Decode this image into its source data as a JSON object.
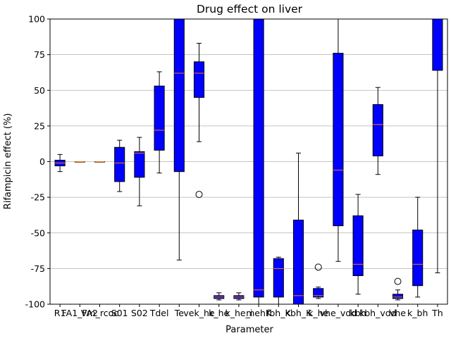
{
  "chart_data": {
    "type": "box",
    "title": "Drug effect on liver",
    "xlabel": "Parameter",
    "ylabel": "Rifampicin effect (%)",
    "ylim": [
      -100,
      100
    ],
    "yticks": [
      -100,
      -75,
      -50,
      -25,
      0,
      25,
      50,
      75,
      100
    ],
    "grid": "horizontal",
    "colors": {
      "box_fill": "#0000ff",
      "median": "#ff7f0e",
      "whisker": "#000000",
      "grid": "#b0b0b0"
    },
    "boxes": [
      {
        "label": "R1",
        "whislo": -7,
        "q1": -3,
        "med": -1,
        "q3": 1,
        "whishi": 5,
        "fliers": []
      },
      {
        "label": "FA1_FA2",
        "whislo": 0,
        "q1": 0,
        "med": 0,
        "q3": 0,
        "whishi": 0,
        "fliers": []
      },
      {
        "label": "Vm_rcoc",
        "whislo": 0,
        "q1": 0,
        "med": 0,
        "q3": 0,
        "whishi": 0,
        "fliers": []
      },
      {
        "label": "S01",
        "whislo": -21,
        "q1": -14,
        "med": -1,
        "q3": 10,
        "whishi": 15,
        "fliers": []
      },
      {
        "label": "S02",
        "whislo": -31,
        "q1": -11,
        "med": 6,
        "q3": 7,
        "whishi": 17,
        "fliers": []
      },
      {
        "label": "Tdel",
        "whislo": -8,
        "q1": 8,
        "med": 22,
        "q3": 53,
        "whishi": 63,
        "fliers": []
      },
      {
        "label": "Te",
        "whislo": -69,
        "q1": -7,
        "med": 62,
        "q3": 100,
        "whishi": 100,
        "fliers": []
      },
      {
        "label": "vek_he",
        "whislo": 14,
        "q1": 45,
        "med": 62,
        "q3": 70,
        "whishi": 83,
        "fliers": [
          -23
        ]
      },
      {
        "label": "k_he",
        "whislo": -97,
        "q1": -96,
        "med": -95,
        "q3": -94,
        "whishi": -92,
        "fliers": []
      },
      {
        "label": "k_he_i",
        "whislo": -97,
        "q1": -96,
        "med": -95,
        "q3": -94,
        "whishi": -92,
        "fliers": []
      },
      {
        "label": "mehK",
        "whislo": -100,
        "q1": -95,
        "med": -90,
        "q3": 100,
        "whishi": 100,
        "fliers": []
      },
      {
        "label": "fbh_K",
        "whislo": -100,
        "q1": -95,
        "med": -75,
        "q3": -68,
        "whishi": -67,
        "fliers": []
      },
      {
        "label": "kbh_K",
        "whislo": -100,
        "q1": -100,
        "med": -94,
        "q3": -41,
        "whishi": 6,
        "fliers": []
      },
      {
        "label": "k_he",
        "whislo": -96,
        "q1": -95,
        "med": -94,
        "q3": -89,
        "whishi": -88,
        "fliers": [
          -74
        ]
      },
      {
        "label": "vhe_vdd",
        "whislo": -70,
        "q1": -45,
        "med": -6,
        "q3": 76,
        "whishi": 100,
        "fliers": []
      },
      {
        "label": "kbh",
        "whislo": -93,
        "q1": -80,
        "med": -72,
        "q3": -38,
        "whishi": -23,
        "fliers": []
      },
      {
        "label": "kbh_vdd",
        "whislo": -9,
        "q1": 4,
        "med": 26,
        "q3": 40,
        "whishi": 52,
        "fliers": []
      },
      {
        "label": "vhe",
        "whislo": -97,
        "q1": -96,
        "med": -95,
        "q3": -93,
        "whishi": -90,
        "fliers": [
          -84
        ]
      },
      {
        "label": "k_bh",
        "whislo": -95,
        "q1": -87,
        "med": -72,
        "q3": -48,
        "whishi": -25,
        "fliers": []
      },
      {
        "label": "Th",
        "whislo": -78,
        "q1": 64,
        "med": 100,
        "q3": 100,
        "whishi": 100,
        "fliers": []
      }
    ]
  }
}
